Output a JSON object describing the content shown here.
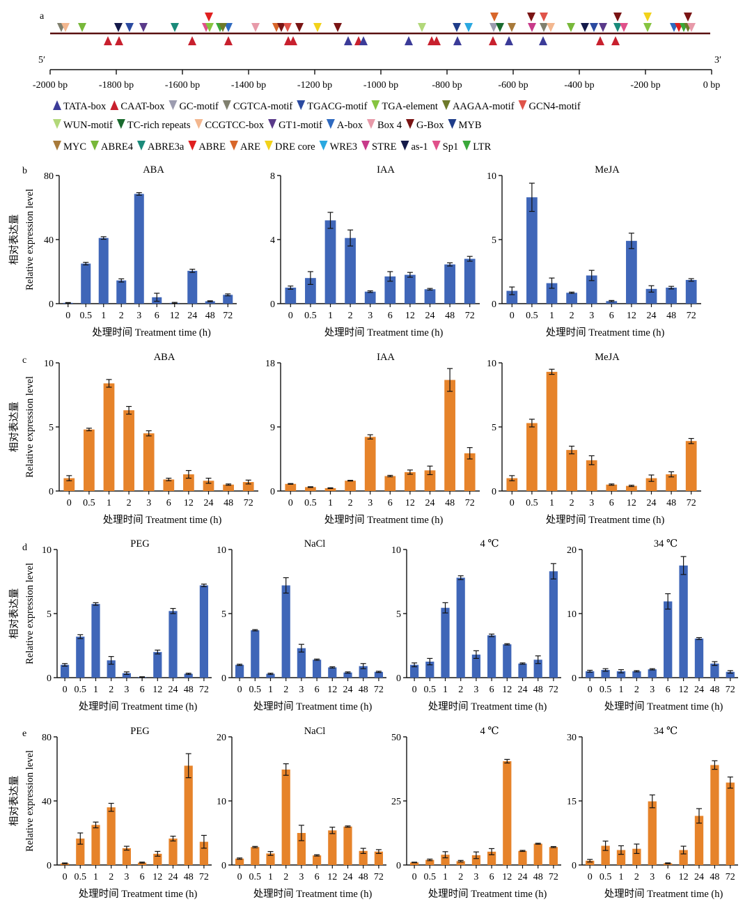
{
  "panel_labels": {
    "a": "a",
    "b": "b",
    "c": "c",
    "d": "d",
    "e": "e"
  },
  "promoter": {
    "label_5": "5′",
    "label_3": "3′",
    "axis_ticks": [
      "-2000 bp",
      "-1800 bp",
      "-1600 bp",
      "-1400 bp",
      "-1200 bp",
      "-1000 bp",
      "-800 bp",
      "-600 bp",
      "-400 bp",
      "-200 bp",
      "0 bp"
    ],
    "legend_rows": [
      [
        {
          "name": "TATA-box",
          "color": "#3b3b98",
          "dir": "up"
        },
        {
          "name": "CAAT-box",
          "color": "#c8202e",
          "dir": "up"
        },
        {
          "name": "GC-motif",
          "color": "#9c9cb0",
          "dir": "down"
        },
        {
          "name": "CGTCA-motif",
          "color": "#80806e",
          "dir": "down"
        },
        {
          "name": "TGACG-motif",
          "color": "#2b4aa0",
          "dir": "down"
        },
        {
          "name": "TGA-element",
          "color": "#86c440",
          "dir": "down"
        },
        {
          "name": "AAGAA-motif",
          "color": "#6e7a2a",
          "dir": "down"
        },
        {
          "name": "GCN4-motif",
          "color": "#e0544a",
          "dir": "down"
        }
      ],
      [
        {
          "name": "WUN-motif",
          "color": "#b2d87a",
          "dir": "down"
        },
        {
          "name": "TC-rich repeats",
          "color": "#1a6b2e",
          "dir": "down"
        },
        {
          "name": "CCGTCC-box",
          "color": "#f3b78f",
          "dir": "down"
        },
        {
          "name": "GT1-motif",
          "color": "#5a3a8a",
          "dir": "down"
        },
        {
          "name": "A-box",
          "color": "#2f6ac0",
          "dir": "down"
        },
        {
          "name": "Box 4",
          "color": "#e79aa9",
          "dir": "down"
        },
        {
          "name": "G-Box",
          "color": "#7a1414",
          "dir": "down"
        },
        {
          "name": "MYB",
          "color": "#1f3d8a",
          "dir": "down"
        }
      ],
      [
        {
          "name": "MYC",
          "color": "#a87a3a",
          "dir": "down"
        },
        {
          "name": "ABRE4",
          "color": "#78b83a",
          "dir": "down"
        },
        {
          "name": "ABRE3a",
          "color": "#1a8a7a",
          "dir": "down"
        },
        {
          "name": "ABRE",
          "color": "#e02020",
          "dir": "down"
        },
        {
          "name": "ARE",
          "color": "#d8662a",
          "dir": "down"
        },
        {
          "name": "DRE core",
          "color": "#f2d21a",
          "dir": "down"
        },
        {
          "name": "WRE3",
          "color": "#2aa8e0",
          "dir": "down"
        },
        {
          "name": "STRE",
          "color": "#c83a8a",
          "dir": "down"
        },
        {
          "name": "as-1",
          "color": "#141a4a",
          "dir": "down"
        },
        {
          "name": "Sp1",
          "color": "#e0508a",
          "dir": "down"
        },
        {
          "name": "LTR",
          "color": "#3aa83a",
          "dir": "down"
        }
      ]
    ]
  },
  "chart_data": [
    {
      "id": "b1",
      "type": "bar",
      "panel": "b",
      "title": "ABA",
      "color": "#3f66b8",
      "categories": [
        "0",
        "0.5",
        "1",
        "2",
        "3",
        "6",
        "12",
        "24",
        "48",
        "72"
      ],
      "values": [
        0.5,
        25,
        41,
        14.5,
        68.5,
        4,
        0.5,
        20.5,
        1.5,
        5.5
      ],
      "errors": [
        0.2,
        0.8,
        0.8,
        1,
        0.8,
        2.5,
        0.3,
        1,
        0.3,
        0.6
      ],
      "ylim": [
        0,
        80
      ],
      "yticks": [
        0,
        40,
        80
      ],
      "ylabel_cn": "相对表达量",
      "ylabel_en": "Relative expression level",
      "xlabel": "处理时间 Treatment time (h)"
    },
    {
      "id": "b2",
      "type": "bar",
      "panel": "b",
      "title": "IAA",
      "color": "#3f66b8",
      "categories": [
        "0",
        "0.5",
        "1",
        "2",
        "3",
        "6",
        "12",
        "24",
        "48",
        "72"
      ],
      "values": [
        1,
        1.6,
        5.2,
        4.1,
        0.75,
        1.7,
        1.8,
        0.9,
        2.45,
        2.8
      ],
      "errors": [
        0.1,
        0.4,
        0.5,
        0.5,
        0.05,
        0.3,
        0.15,
        0.05,
        0.1,
        0.15
      ],
      "ylim": [
        0,
        8
      ],
      "yticks": [
        0,
        4,
        8
      ],
      "ylabel_cn": "",
      "ylabel_en": "",
      "xlabel": "处理时间 Treatment time (h)"
    },
    {
      "id": "b3",
      "type": "bar",
      "panel": "b",
      "title": "MeJA",
      "color": "#3f66b8",
      "categories": [
        "0",
        "0.5",
        "1",
        "2",
        "3",
        "6",
        "12",
        "24",
        "48",
        "72"
      ],
      "values": [
        1,
        8.3,
        1.6,
        0.85,
        2.2,
        0.2,
        4.9,
        1.15,
        1.25,
        1.85
      ],
      "errors": [
        0.3,
        1.1,
        0.4,
        0.05,
        0.4,
        0.05,
        0.6,
        0.25,
        0.1,
        0.1
      ],
      "ylim": [
        0,
        10
      ],
      "yticks": [
        0,
        5,
        10
      ],
      "ylabel_cn": "",
      "ylabel_en": "",
      "xlabel": "处理时间 Treatment time (h)"
    },
    {
      "id": "c1",
      "type": "bar",
      "panel": "c",
      "title": "ABA",
      "color": "#e6832a",
      "categories": [
        "0",
        "0.5",
        "1",
        "2",
        "3",
        "6",
        "12",
        "24",
        "48",
        "72"
      ],
      "values": [
        1,
        4.8,
        8.4,
        6.3,
        4.5,
        0.9,
        1.3,
        0.8,
        0.5,
        0.7
      ],
      "errors": [
        0.2,
        0.1,
        0.3,
        0.3,
        0.2,
        0.1,
        0.3,
        0.2,
        0.05,
        0.15
      ],
      "ylim": [
        0,
        10
      ],
      "yticks": [
        0,
        5,
        10
      ],
      "ylabel_cn": "相对表达量",
      "ylabel_en": "Relative expression level",
      "xlabel": "处理时间 Treatment time (h)"
    },
    {
      "id": "c2",
      "type": "bar",
      "panel": "c",
      "title": "IAA",
      "color": "#e6832a",
      "categories": [
        "0",
        "0.5",
        "1",
        "2",
        "3",
        "6",
        "12",
        "24",
        "48",
        "72"
      ],
      "values": [
        1,
        0.55,
        0.4,
        1.45,
        7.6,
        2.1,
        2.65,
        2.9,
        15.6,
        5.3
      ],
      "errors": [
        0.05,
        0.05,
        0.05,
        0.05,
        0.3,
        0.1,
        0.3,
        0.6,
        1.6,
        0.8
      ],
      "ylim": [
        0,
        18
      ],
      "yticks": [
        0,
        9,
        18
      ],
      "ylabel_cn": "",
      "ylabel_en": "",
      "xlabel": "处理时间 Treatment time (h)"
    },
    {
      "id": "c3",
      "type": "bar",
      "panel": "c",
      "title": "MeJA",
      "color": "#e6832a",
      "categories": [
        "0",
        "0.5",
        "1",
        "2",
        "3",
        "6",
        "12",
        "24",
        "48",
        "72"
      ],
      "values": [
        1,
        5.3,
        9.3,
        3.2,
        2.4,
        0.5,
        0.4,
        1,
        1.3,
        3.9
      ],
      "errors": [
        0.2,
        0.3,
        0.2,
        0.3,
        0.35,
        0.05,
        0.05,
        0.25,
        0.2,
        0.2
      ],
      "ylim": [
        0,
        10
      ],
      "yticks": [
        0,
        5,
        10
      ],
      "ylabel_cn": "",
      "ylabel_en": "",
      "xlabel": "处理时间 Treatment time (h)"
    },
    {
      "id": "d1",
      "type": "bar",
      "panel": "d",
      "title": "PEG",
      "color": "#3f66b8",
      "categories": [
        "0",
        "0.5",
        "1",
        "2",
        "3",
        "6",
        "12",
        "24",
        "48",
        "72"
      ],
      "values": [
        1,
        3.2,
        5.75,
        1.35,
        0.35,
        0.05,
        2,
        5.2,
        0.3,
        7.2
      ],
      "errors": [
        0.1,
        0.15,
        0.1,
        0.3,
        0.1,
        0.02,
        0.15,
        0.2,
        0.05,
        0.1
      ],
      "ylim": [
        0,
        10
      ],
      "yticks": [
        0,
        5,
        10
      ],
      "ylabel_cn": "相对表达量",
      "ylabel_en": "Relative expression level",
      "xlabel": "处理时间 Treatment time (h)"
    },
    {
      "id": "d2",
      "type": "bar",
      "panel": "d",
      "title": "NaCl",
      "color": "#3f66b8",
      "categories": [
        "0",
        "0.5",
        "1",
        "2",
        "3",
        "6",
        "12",
        "24",
        "48",
        "72"
      ],
      "values": [
        1,
        3.7,
        0.3,
        7.2,
        2.3,
        1.4,
        0.8,
        0.4,
        0.9,
        0.45
      ],
      "errors": [
        0.05,
        0.05,
        0.05,
        0.6,
        0.3,
        0.05,
        0.05,
        0.05,
        0.2,
        0.05
      ],
      "ylim": [
        0,
        10
      ],
      "yticks": [
        0,
        5,
        10
      ],
      "ylabel_cn": "",
      "ylabel_en": "",
      "xlabel": "处理时间 Treatment time (h)"
    },
    {
      "id": "d3",
      "type": "bar",
      "panel": "d",
      "title": "4 ℃",
      "color": "#3f66b8",
      "categories": [
        "0",
        "0.5",
        "1",
        "2",
        "3",
        "6",
        "12",
        "24",
        "48",
        "72"
      ],
      "values": [
        1,
        1.25,
        5.45,
        7.8,
        1.8,
        3.3,
        2.6,
        1.1,
        1.4,
        8.3
      ],
      "errors": [
        0.15,
        0.25,
        0.4,
        0.15,
        0.3,
        0.1,
        0.05,
        0.05,
        0.3,
        0.6
      ],
      "ylim": [
        0,
        10
      ],
      "yticks": [
        0,
        5,
        10
      ],
      "ylabel_cn": "",
      "ylabel_en": "",
      "xlabel": "处理时间 Treatment time (h)"
    },
    {
      "id": "d4",
      "type": "bar",
      "panel": "d",
      "title": "34 ℃",
      "color": "#3f66b8",
      "categories": [
        "0",
        "0.5",
        "1",
        "2",
        "3",
        "6",
        "12",
        "24",
        "48",
        "72"
      ],
      "values": [
        1,
        1.2,
        1,
        1,
        1.3,
        11.9,
        17.5,
        6.1,
        2.2,
        0.9
      ],
      "errors": [
        0.15,
        0.2,
        0.25,
        0.1,
        0.1,
        1.2,
        1.4,
        0.15,
        0.3,
        0.2
      ],
      "ylim": [
        0,
        20
      ],
      "yticks": [
        0,
        10,
        20
      ],
      "ylabel_cn": "",
      "ylabel_en": "",
      "xlabel": "处理时间 Treatment time (h)"
    },
    {
      "id": "e1",
      "type": "bar",
      "panel": "e",
      "title": "PEG",
      "color": "#e6832a",
      "categories": [
        "0",
        "0.5",
        "1",
        "2",
        "3",
        "6",
        "12",
        "24",
        "48",
        "72"
      ],
      "values": [
        1,
        16.5,
        25,
        36,
        10.5,
        1.5,
        7,
        16.5,
        62,
        14.5
      ],
      "errors": [
        0.3,
        3.5,
        1.8,
        2.5,
        1.2,
        0.3,
        1.5,
        1.5,
        7.5,
        4
      ],
      "ylim": [
        0,
        80
      ],
      "yticks": [
        0,
        40,
        80
      ],
      "ylabel_cn": "相对表达量",
      "ylabel_en": "Relative expression level",
      "xlabel": "处理时间 Treatment time (h)"
    },
    {
      "id": "e2",
      "type": "bar",
      "panel": "e",
      "title": "NaCl",
      "color": "#e6832a",
      "categories": [
        "0",
        "0.5",
        "1",
        "2",
        "3",
        "6",
        "12",
        "24",
        "48",
        "72"
      ],
      "values": [
        1,
        2.8,
        1.8,
        14.9,
        5,
        1.5,
        5.4,
        6,
        2.2,
        2.1
      ],
      "errors": [
        0.1,
        0.1,
        0.3,
        0.9,
        1.2,
        0.1,
        0.5,
        0.1,
        0.4,
        0.3
      ],
      "ylim": [
        0,
        20
      ],
      "yticks": [
        0,
        10,
        20
      ],
      "ylabel_cn": "",
      "ylabel_en": "",
      "xlabel": "处理时间 Treatment time (h)"
    },
    {
      "id": "e3",
      "type": "bar",
      "panel": "e",
      "title": "4 ℃",
      "color": "#e6832a",
      "categories": [
        "0",
        "0.5",
        "1",
        "2",
        "3",
        "6",
        "12",
        "24",
        "48",
        "72"
      ],
      "values": [
        1,
        2,
        4,
        1.5,
        3.8,
        5.2,
        40.5,
        5.5,
        8.3,
        7
      ],
      "errors": [
        0.1,
        0.3,
        1.2,
        0.3,
        1.3,
        1.2,
        0.7,
        0.2,
        0.2,
        0.2
      ],
      "ylim": [
        0,
        50
      ],
      "yticks": [
        0,
        25,
        50
      ],
      "ylabel_cn": "",
      "ylabel_en": "",
      "xlabel": "处理时间 Treatment time (h)"
    },
    {
      "id": "e4",
      "type": "bar",
      "panel": "e",
      "title": "34 ℃",
      "color": "#e6832a",
      "categories": [
        "0",
        "0.5",
        "1",
        "2",
        "3",
        "6",
        "12",
        "24",
        "48",
        "72"
      ],
      "values": [
        1,
        4.5,
        3.5,
        3.8,
        14.9,
        0.4,
        3.5,
        11.5,
        23.4,
        19.3
      ],
      "errors": [
        0.3,
        1.1,
        1,
        1.1,
        1.5,
        0.1,
        0.9,
        1.7,
        1,
        1.3
      ],
      "ylim": [
        0,
        30
      ],
      "yticks": [
        0,
        15,
        30
      ],
      "ylabel_cn": "",
      "ylabel_en": "",
      "xlabel": "处理时间 Treatment time (h)"
    }
  ]
}
